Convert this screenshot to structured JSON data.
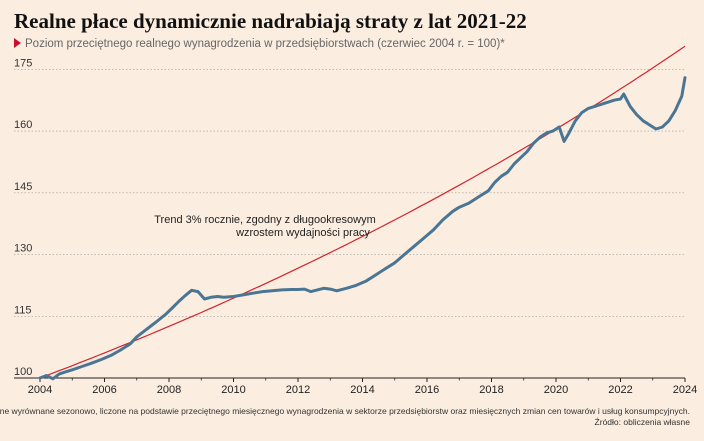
{
  "header": {
    "title": "Realne płace dynamicznie nadrabiają straty z lat 2021-22",
    "subtitle": "Poziom przeciętnego realnego wynagrodzenia w przedsiębiorstwach (czerwiec 2004 r. = 100)*"
  },
  "colors": {
    "series": "#4a7594",
    "trend": "#d4232e",
    "marker": "#c8102e",
    "background": "#fbeee0"
  },
  "footnote": {
    "line1": "* dane wyrównane sezonowo, liczone na podstawie przeciętnego miesięcznego wynagrodzenia w sektorze przedsiębiorstw oraz miesięcznych zmian cen towarów i usług konsumpcyjnych.",
    "line2": "Źródło: obliczenia własne"
  },
  "chart_data": {
    "type": "line",
    "title": "Realne płace dynamicznie nadrabiają straty z lat 2021-22",
    "xlabel": "",
    "ylabel": "",
    "xlim": [
      2004,
      2024
    ],
    "ylim": [
      100,
      178
    ],
    "y_ticks": [
      100,
      115,
      130,
      145,
      160,
      175
    ],
    "x_ticks": [
      2004,
      2006,
      2008,
      2010,
      2012,
      2014,
      2016,
      2018,
      2020,
      2022,
      2024
    ],
    "grid": "horizontal",
    "annotation": {
      "line1": "Trend 3% rocznie, zgodny z długookresowym",
      "line2": "wzrostem wydajności pracy"
    },
    "series": [
      {
        "x": [
          2004.0,
          2004.2,
          2004.4,
          2004.6,
          2004.8,
          2005.0,
          2005.3,
          2005.6,
          2005.9,
          2006.2,
          2006.5,
          2006.8,
          2007.0,
          2007.3,
          2007.6,
          2007.9,
          2008.1,
          2008.3,
          2008.5,
          2008.7,
          2008.9,
          2009.1,
          2009.3,
          2009.5,
          2009.7,
          2010.0,
          2010.3,
          2010.6,
          2010.9,
          2011.2,
          2011.5,
          2011.8,
          2012.0,
          2012.2,
          2012.4,
          2012.6,
          2012.8,
          2013.0,
          2013.2,
          2013.5,
          2013.8,
          2014.1,
          2014.4,
          2014.7,
          2015.0,
          2015.3,
          2015.6,
          2015.9,
          2016.2,
          2016.5,
          2016.8,
          2017.0,
          2017.3,
          2017.6,
          2017.9,
          2018.1,
          2018.3,
          2018.5,
          2018.7,
          2018.9,
          2019.1,
          2019.3,
          2019.5,
          2019.7,
          2019.9,
          2020.1,
          2020.25,
          2020.4,
          2020.6,
          2020.8,
          2021.0,
          2021.2,
          2021.4,
          2021.6,
          2021.8,
          2022.0,
          2022.1,
          2022.3,
          2022.5,
          2022.7,
          2022.9,
          2023.1,
          2023.3,
          2023.5,
          2023.7,
          2023.9,
          2024.0
        ],
        "values": [
          100,
          100.6,
          99.8,
          101,
          101.5,
          102,
          102.8,
          103.6,
          104.5,
          105.5,
          106.8,
          108.3,
          110,
          111.8,
          113.6,
          115.5,
          117,
          118.6,
          120,
          121.3,
          121,
          119.2,
          119.6,
          119.8,
          119.6,
          119.8,
          120.2,
          120.6,
          121,
          121.2,
          121.4,
          121.5,
          121.5,
          121.6,
          121,
          121.4,
          121.8,
          121.6,
          121.2,
          121.8,
          122.5,
          123.5,
          125,
          126.5,
          128,
          130,
          132,
          134,
          136,
          138.5,
          140.5,
          141.5,
          142.5,
          144,
          145.5,
          147.5,
          149,
          150,
          152,
          153.5,
          155,
          157,
          158.5,
          159.5,
          160,
          161,
          157.5,
          159.5,
          162.5,
          164.5,
          165.5,
          166,
          166.5,
          167,
          167.5,
          167.8,
          169,
          166,
          164,
          162.5,
          161.5,
          160.5,
          161,
          162.5,
          165,
          168.5,
          173
        ]
      },
      {
        "name": "Trend 3% rocznie, zgodny z długookresowym wzrostem wydajności pracy",
        "growth_rate": 0.03,
        "x": [
          2004,
          2024
        ],
        "values": [
          100,
          180.6
        ]
      }
    ]
  }
}
